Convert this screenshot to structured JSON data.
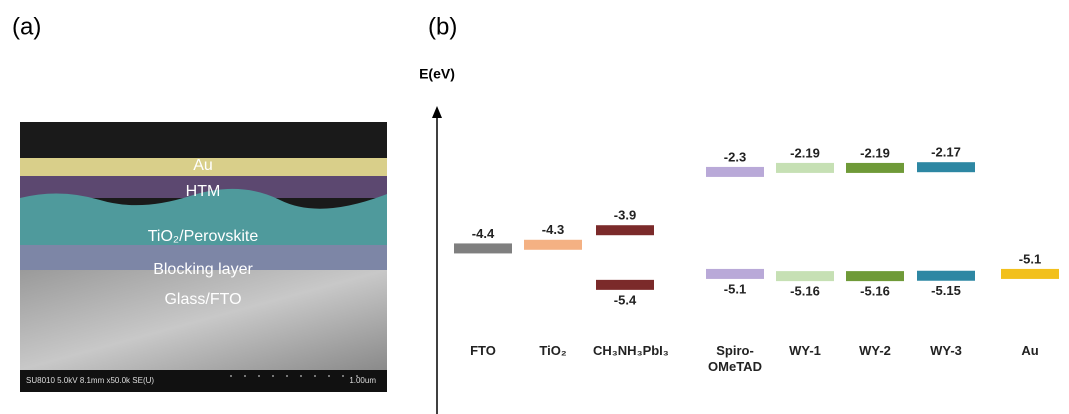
{
  "panel_a": {
    "label": "(a)",
    "layers": [
      "Au",
      "HTM",
      "TiO₂/Perovskite",
      "Blocking layer",
      "Glass/FTO"
    ],
    "info": "SU8010 5.0kV 8.1mm x50.0k SE(U)",
    "scale": "1.00um"
  },
  "chart_data": {
    "type": "energy-level",
    "panel": "(b)",
    "y_label": "E(eV)",
    "categories": [
      "FTO",
      "TiO₂",
      "CH₃NH₃PbI₃",
      "Spiro-OMeTAD",
      "WY-1",
      "WY-2",
      "WY-3",
      "Au"
    ],
    "levels": [
      [
        -4.4
      ],
      [
        -4.3
      ],
      [
        -3.9,
        -5.4
      ],
      [
        -2.3,
        -5.1
      ],
      [
        -2.19,
        -5.16
      ],
      [
        -2.19,
        -5.16
      ],
      [
        -2.17,
        -5.15
      ],
      [
        -5.1
      ]
    ],
    "colors": [
      "#7f7f7f",
      "#f4b183",
      "#7b2a2a",
      "#b9a9d8",
      "#c6e0b4",
      "#6f9a38",
      "#2d87a3",
      "#f2c01c"
    ],
    "ylim": [
      -9,
      -0.6
    ]
  }
}
